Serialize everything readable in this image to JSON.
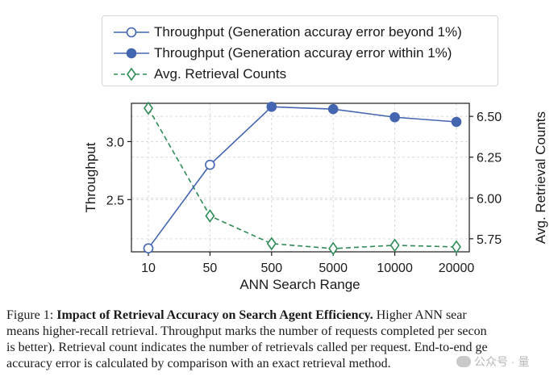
{
  "colors": {
    "throughput": "#4466b0",
    "retrieval": "#2e8b57",
    "grid": "#d9d9d9",
    "axis": "#1a1a1a"
  },
  "legend": {
    "items": [
      {
        "label": "Throughput (Generation accuray error beyond 1%)",
        "marker": "open-circle-icon"
      },
      {
        "label": "Throughput (Generation accuray error within 1%)",
        "marker": "filled-circle-icon"
      },
      {
        "label": "Avg. Retrieval Counts",
        "marker": "open-diamond-icon"
      }
    ]
  },
  "chart_data": {
    "type": "line",
    "categories": [
      "10",
      "50",
      "500",
      "5000",
      "10000",
      "20000"
    ],
    "xlabel": "ANN Search Range",
    "ylabel": "Throughput",
    "y2label": "Avg. Retrieval Counts",
    "ylim": [
      2.05,
      3.33
    ],
    "y2lim": [
      5.67,
      6.58
    ],
    "yticks": [
      "2.5",
      "3.0"
    ],
    "y2ticks": [
      "5.75",
      "6.00",
      "6.25",
      "6.50"
    ],
    "grid": true,
    "legend_position": "top",
    "series": [
      {
        "name": "Throughput (Generation accuray error beyond 1%)",
        "axis": "left",
        "marker": "open-circle",
        "points": [
          {
            "x": "10",
            "y": 2.08
          },
          {
            "x": "50",
            "y": 2.8
          }
        ]
      },
      {
        "name": "Throughput (Generation accuray error within 1%)",
        "axis": "left",
        "marker": "filled-circle",
        "points": [
          {
            "x": "500",
            "y": 3.3
          },
          {
            "x": "5000",
            "y": 3.28
          },
          {
            "x": "10000",
            "y": 3.21
          },
          {
            "x": "20000",
            "y": 3.17
          }
        ]
      },
      {
        "name": "Avg. Retrieval Counts",
        "axis": "right",
        "marker": "open-diamond",
        "style": "dashed",
        "points": [
          {
            "x": "10",
            "y": 6.55
          },
          {
            "x": "50",
            "y": 5.89
          },
          {
            "x": "500",
            "y": 5.72
          },
          {
            "x": "5000",
            "y": 5.69
          },
          {
            "x": "10000",
            "y": 5.71
          },
          {
            "x": "20000",
            "y": 5.7
          }
        ]
      }
    ],
    "connector": {
      "from_series": 0,
      "to_series": 1,
      "from_x": "50",
      "to_x": "500"
    }
  },
  "caption": {
    "label": "Figure 1: ",
    "title": "Impact of Retrieval Accuracy on Search Agent Efficiency.",
    "line1_rest": " Higher ANN sear",
    "line2": "means higher-recall retrieval. Throughput marks the number of requests completed per secon",
    "line3": "is better). Retrieval count indicates the number of retrievals called per request. End-to-end ge",
    "line4": "accuracy error is calculated by comparison with an exact retrieval method."
  },
  "watermark": {
    "text": "公众号 · 量"
  }
}
